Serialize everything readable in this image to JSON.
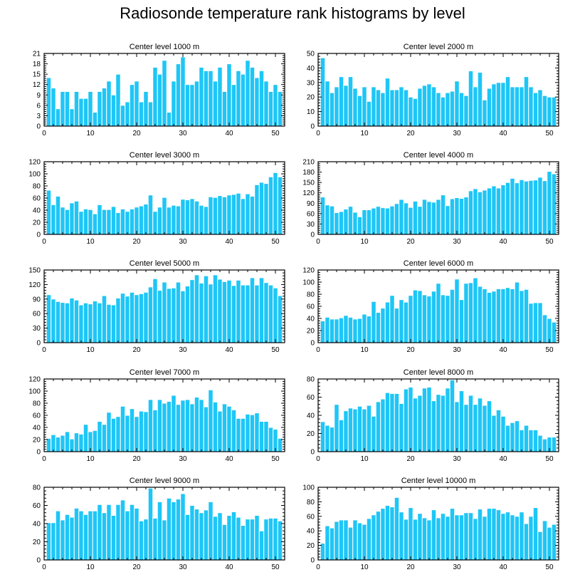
{
  "title": "Radiosonde temperature rank histograms by level",
  "colors": {
    "bar": "#1EC6F6",
    "bar_edge": "#FFFFFF",
    "axis": "#000000"
  },
  "chart_data": [
    {
      "type": "bar",
      "title": "Center level 1000 m",
      "x": [
        1,
        2,
        3,
        4,
        5,
        6,
        7,
        8,
        9,
        10,
        11,
        12,
        13,
        14,
        15,
        16,
        17,
        18,
        19,
        20,
        21,
        22,
        23,
        24,
        25,
        26,
        27,
        28,
        29,
        30,
        31,
        32,
        33,
        34,
        35,
        36,
        37,
        38,
        39,
        40,
        41,
        42,
        43,
        44,
        45,
        46,
        47,
        48,
        49,
        50,
        51
      ],
      "values": [
        14,
        11,
        5,
        10,
        10,
        5,
        10,
        8,
        8,
        10,
        4,
        10,
        11,
        13,
        9,
        15,
        6,
        7,
        12,
        13,
        7,
        10,
        7,
        17,
        15,
        19,
        4,
        13,
        18,
        20,
        12,
        12,
        13,
        17,
        16,
        16,
        13,
        17,
        10,
        18,
        12,
        16,
        15,
        19,
        17,
        14,
        16,
        13,
        10,
        12,
        10
      ],
      "xlim": [
        0,
        52
      ],
      "ylim": [
        0,
        21
      ],
      "xticks": [
        0,
        10,
        20,
        30,
        40,
        50
      ],
      "yticks": [
        0,
        3,
        6,
        9,
        12,
        15,
        18,
        21
      ]
    },
    {
      "type": "bar",
      "title": "Center level 2000 m",
      "x": [
        1,
        2,
        3,
        4,
        5,
        6,
        7,
        8,
        9,
        10,
        11,
        12,
        13,
        14,
        15,
        16,
        17,
        18,
        19,
        20,
        21,
        22,
        23,
        24,
        25,
        26,
        27,
        28,
        29,
        30,
        31,
        32,
        33,
        34,
        35,
        36,
        37,
        38,
        39,
        40,
        41,
        42,
        43,
        44,
        45,
        46,
        47,
        48,
        49,
        50,
        51
      ],
      "values": [
        47,
        31,
        23,
        27,
        34,
        28,
        34,
        26,
        21,
        27,
        17,
        27,
        25,
        23,
        33,
        25,
        25,
        27,
        25,
        20,
        19,
        26,
        28,
        29,
        27,
        23,
        20,
        23,
        24,
        31,
        23,
        21,
        38,
        27,
        37,
        18,
        26,
        29,
        30,
        30,
        34,
        27,
        27,
        27,
        34,
        27,
        23,
        25,
        21,
        20,
        20
      ],
      "xlim": [
        0,
        52
      ],
      "ylim": [
        0,
        50
      ],
      "xticks": [
        0,
        10,
        20,
        30,
        40,
        50
      ],
      "yticks": [
        0,
        10,
        20,
        30,
        40,
        50
      ]
    },
    {
      "type": "bar",
      "title": "Center level 3000 m",
      "x": [
        1,
        2,
        3,
        4,
        5,
        6,
        7,
        8,
        9,
        10,
        11,
        12,
        13,
        14,
        15,
        16,
        17,
        18,
        19,
        20,
        21,
        22,
        23,
        24,
        25,
        26,
        27,
        28,
        29,
        30,
        31,
        32,
        33,
        34,
        35,
        36,
        37,
        38,
        39,
        40,
        41,
        42,
        43,
        44,
        45,
        46,
        47,
        48,
        49,
        50,
        51
      ],
      "values": [
        73,
        49,
        63,
        45,
        41,
        52,
        55,
        38,
        42,
        41,
        34,
        49,
        41,
        41,
        46,
        36,
        42,
        38,
        42,
        45,
        47,
        50,
        65,
        38,
        45,
        61,
        45,
        48,
        47,
        58,
        57,
        59,
        55,
        48,
        46,
        62,
        61,
        64,
        62,
        65,
        66,
        68,
        59,
        67,
        63,
        82,
        86,
        84,
        95,
        102,
        95
      ],
      "xlim": [
        0,
        52
      ],
      "ylim": [
        0,
        120
      ],
      "xticks": [
        0,
        10,
        20,
        30,
        40,
        50
      ],
      "yticks": [
        0,
        20,
        40,
        60,
        80,
        100,
        120
      ]
    },
    {
      "type": "bar",
      "title": "Center level 4000 m",
      "x": [
        1,
        2,
        3,
        4,
        5,
        6,
        7,
        8,
        9,
        10,
        11,
        12,
        13,
        14,
        15,
        16,
        17,
        18,
        19,
        20,
        21,
        22,
        23,
        24,
        25,
        26,
        27,
        28,
        29,
        30,
        31,
        32,
        33,
        34,
        35,
        36,
        37,
        38,
        39,
        40,
        41,
        42,
        43,
        44,
        45,
        46,
        47,
        48,
        49,
        50,
        51
      ],
      "values": [
        108,
        85,
        82,
        63,
        66,
        73,
        81,
        64,
        51,
        71,
        71,
        76,
        81,
        77,
        76,
        82,
        89,
        101,
        91,
        78,
        96,
        81,
        101,
        95,
        93,
        101,
        114,
        83,
        103,
        106,
        104,
        108,
        126,
        132,
        123,
        128,
        134,
        140,
        134,
        143,
        150,
        162,
        149,
        158,
        154,
        156,
        157,
        165,
        155,
        182,
        175
      ],
      "xlim": [
        0,
        52
      ],
      "ylim": [
        0,
        210
      ],
      "xticks": [
        0,
        10,
        20,
        30,
        40,
        50
      ],
      "yticks": [
        0,
        30,
        60,
        90,
        120,
        150,
        180,
        210
      ]
    },
    {
      "type": "bar",
      "title": "Center level 5000 m",
      "x": [
        1,
        2,
        3,
        4,
        5,
        6,
        7,
        8,
        9,
        10,
        11,
        12,
        13,
        14,
        15,
        16,
        17,
        18,
        19,
        20,
        21,
        22,
        23,
        24,
        25,
        26,
        27,
        28,
        29,
        30,
        31,
        32,
        33,
        34,
        35,
        36,
        37,
        38,
        39,
        40,
        41,
        42,
        43,
        44,
        45,
        46,
        47,
        48,
        49,
        50,
        51
      ],
      "values": [
        99,
        90,
        85,
        83,
        82,
        92,
        88,
        78,
        82,
        80,
        86,
        82,
        97,
        79,
        78,
        92,
        102,
        96,
        104,
        99,
        101,
        104,
        115,
        132,
        108,
        125,
        112,
        113,
        125,
        107,
        117,
        130,
        140,
        123,
        138,
        121,
        140,
        131,
        126,
        129,
        118,
        129,
        119,
        119,
        134,
        119,
        134,
        124,
        119,
        113,
        97
      ],
      "xlim": [
        0,
        52
      ],
      "ylim": [
        0,
        150
      ],
      "xticks": [
        0,
        10,
        20,
        30,
        40,
        50
      ],
      "yticks": [
        0,
        30,
        60,
        90,
        120,
        150
      ]
    },
    {
      "type": "bar",
      "title": "Center level 6000 m",
      "x": [
        1,
        2,
        3,
        4,
        5,
        6,
        7,
        8,
        9,
        10,
        11,
        12,
        13,
        14,
        15,
        16,
        17,
        18,
        19,
        20,
        21,
        22,
        23,
        24,
        25,
        26,
        27,
        28,
        29,
        30,
        31,
        32,
        33,
        34,
        35,
        36,
        37,
        38,
        39,
        40,
        41,
        42,
        43,
        44,
        45,
        46,
        47,
        48,
        49,
        50,
        51
      ],
      "values": [
        36,
        42,
        39,
        39,
        41,
        45,
        42,
        39,
        40,
        47,
        44,
        68,
        50,
        57,
        67,
        78,
        57,
        71,
        67,
        78,
        87,
        86,
        79,
        77,
        85,
        98,
        79,
        78,
        88,
        105,
        71,
        98,
        99,
        107,
        93,
        89,
        83,
        85,
        89,
        89,
        91,
        89,
        100,
        86,
        88,
        65,
        66,
        66,
        46,
        40,
        34
      ],
      "xlim": [
        0,
        52
      ],
      "ylim": [
        0,
        120
      ],
      "xticks": [
        0,
        10,
        20,
        30,
        40,
        50
      ],
      "yticks": [
        0,
        20,
        40,
        60,
        80,
        100,
        120
      ]
    },
    {
      "type": "bar",
      "title": "Center level 7000 m",
      "x": [
        1,
        2,
        3,
        4,
        5,
        6,
        7,
        8,
        9,
        10,
        11,
        12,
        13,
        14,
        15,
        16,
        17,
        18,
        19,
        20,
        21,
        22,
        23,
        24,
        25,
        26,
        27,
        28,
        29,
        30,
        31,
        32,
        33,
        34,
        35,
        36,
        37,
        38,
        39,
        40,
        41,
        42,
        43,
        44,
        45,
        46,
        47,
        48,
        49,
        50,
        51
      ],
      "values": [
        22,
        28,
        24,
        27,
        33,
        21,
        31,
        29,
        45,
        33,
        35,
        50,
        45,
        65,
        55,
        58,
        75,
        60,
        71,
        58,
        67,
        66,
        86,
        69,
        86,
        80,
        83,
        93,
        78,
        85,
        86,
        79,
        90,
        86,
        74,
        102,
        82,
        67,
        79,
        75,
        69,
        55,
        55,
        62,
        61,
        64,
        50,
        50,
        40,
        37,
        22
      ],
      "xlim": [
        0,
        52
      ],
      "ylim": [
        0,
        120
      ],
      "xticks": [
        0,
        10,
        20,
        30,
        40,
        50
      ],
      "yticks": [
        0,
        20,
        40,
        60,
        80,
        100,
        120
      ]
    },
    {
      "type": "bar",
      "title": "Center level 8000 m",
      "x": [
        1,
        2,
        3,
        4,
        5,
        6,
        7,
        8,
        9,
        10,
        11,
        12,
        13,
        14,
        15,
        16,
        17,
        18,
        19,
        20,
        21,
        22,
        23,
        24,
        25,
        26,
        27,
        28,
        29,
        30,
        31,
        32,
        33,
        34,
        35,
        36,
        37,
        38,
        39,
        40,
        41,
        42,
        43,
        44,
        45,
        46,
        47,
        48,
        49,
        50,
        51
      ],
      "values": [
        33,
        29,
        27,
        52,
        35,
        45,
        48,
        47,
        50,
        47,
        51,
        39,
        55,
        58,
        65,
        64,
        64,
        53,
        69,
        71,
        59,
        62,
        70,
        71,
        56,
        63,
        62,
        70,
        79,
        55,
        67,
        52,
        62,
        52,
        59,
        51,
        56,
        40,
        46,
        39,
        29,
        32,
        34,
        24,
        29,
        24,
        24,
        18,
        14,
        16,
        16
      ],
      "xlim": [
        0,
        52
      ],
      "ylim": [
        0,
        80
      ],
      "xticks": [
        0,
        10,
        20,
        30,
        40,
        50
      ],
      "yticks": [
        0,
        20,
        40,
        60,
        80
      ]
    },
    {
      "type": "bar",
      "title": "Center level 9000 m",
      "x": [
        1,
        2,
        3,
        4,
        5,
        6,
        7,
        8,
        9,
        10,
        11,
        12,
        13,
        14,
        15,
        16,
        17,
        18,
        19,
        20,
        21,
        22,
        23,
        24,
        25,
        26,
        27,
        28,
        29,
        30,
        31,
        32,
        33,
        34,
        35,
        36,
        37,
        38,
        39,
        40,
        41,
        42,
        43,
        44,
        45,
        46,
        47,
        48,
        49,
        50,
        51
      ],
      "values": [
        41,
        41,
        54,
        44,
        50,
        47,
        57,
        54,
        50,
        54,
        54,
        61,
        52,
        61,
        49,
        61,
        66,
        54,
        61,
        57,
        43,
        45,
        79,
        46,
        64,
        44,
        68,
        64,
        67,
        73,
        50,
        60,
        56,
        52,
        55,
        64,
        48,
        52,
        39,
        49,
        53,
        47,
        38,
        45,
        45,
        49,
        32,
        45,
        46,
        46,
        43
      ],
      "xlim": [
        0,
        52
      ],
      "ylim": [
        0,
        80
      ],
      "xticks": [
        0,
        10,
        20,
        30,
        40,
        50
      ],
      "yticks": [
        0,
        20,
        40,
        60,
        80
      ]
    },
    {
      "type": "bar",
      "title": "Center level 10000 m",
      "x": [
        1,
        2,
        3,
        4,
        5,
        6,
        7,
        8,
        9,
        10,
        11,
        12,
        13,
        14,
        15,
        16,
        17,
        18,
        19,
        20,
        21,
        22,
        23,
        24,
        25,
        26,
        27,
        28,
        29,
        30,
        31,
        32,
        33,
        34,
        35,
        36,
        37,
        38,
        39,
        40,
        41,
        42,
        43,
        44,
        45,
        46,
        47,
        48,
        49,
        50,
        51
      ],
      "values": [
        23,
        47,
        44,
        53,
        55,
        55,
        45,
        55,
        51,
        49,
        57,
        62,
        67,
        71,
        75,
        73,
        86,
        66,
        56,
        72,
        56,
        64,
        58,
        55,
        69,
        58,
        64,
        60,
        71,
        62,
        62,
        65,
        65,
        57,
        70,
        60,
        71,
        71,
        69,
        64,
        66,
        62,
        60,
        66,
        50,
        60,
        72,
        39,
        54,
        45,
        49
      ],
      "xlim": [
        0,
        52
      ],
      "ylim": [
        0,
        100
      ],
      "xticks": [
        0,
        10,
        20,
        30,
        40,
        50
      ],
      "yticks": [
        0,
        20,
        40,
        60,
        80,
        100
      ]
    }
  ]
}
